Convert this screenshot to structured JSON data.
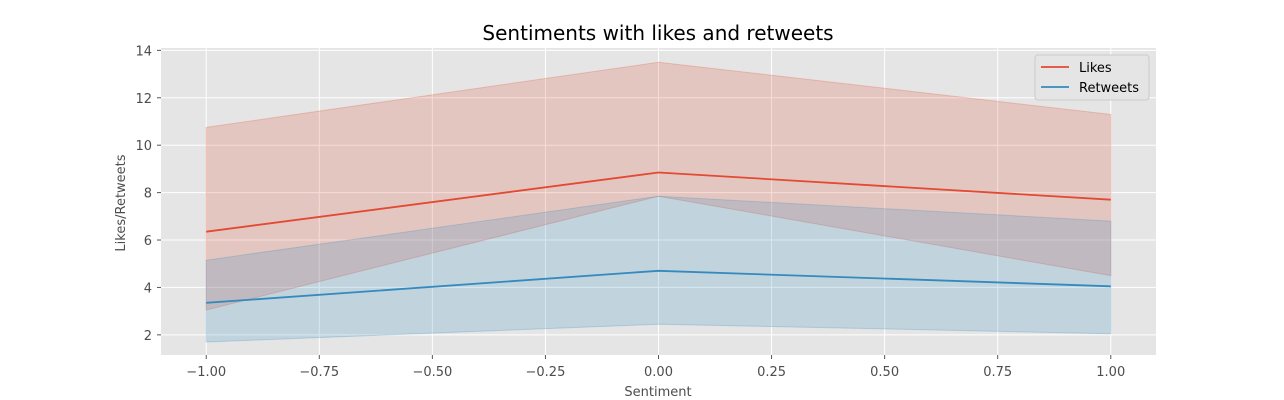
{
  "chart_data": {
    "type": "line",
    "title": "Sentiments with likes and retweets",
    "xlabel": "Sentiment",
    "ylabel": "Likes/Retweets",
    "xlim": [
      -1.1,
      1.1
    ],
    "ylim": [
      1.15,
      14.1
    ],
    "xticks": [
      -1.0,
      -0.75,
      -0.5,
      -0.25,
      0.0,
      0.25,
      0.5,
      0.75,
      1.0
    ],
    "xtick_labels": [
      "−1.00",
      "−0.75",
      "−0.50",
      "−0.25",
      "0.00",
      "0.25",
      "0.50",
      "0.75",
      "1.00"
    ],
    "yticks": [
      2,
      4,
      6,
      8,
      10,
      12,
      14
    ],
    "ytick_labels": [
      "2",
      "4",
      "6",
      "8",
      "10",
      "12",
      "14"
    ],
    "grid": true,
    "legend_position": "top-right",
    "x": [
      -1.0,
      0.0,
      1.0
    ],
    "series": [
      {
        "name": "Likes",
        "color": "#E24A33",
        "values": [
          6.35,
          8.85,
          7.7
        ],
        "ci_lower": [
          3.05,
          7.85,
          4.5
        ],
        "ci_upper": [
          10.75,
          13.5,
          11.3
        ]
      },
      {
        "name": "Retweets",
        "color": "#348ABD",
        "values": [
          3.35,
          4.7,
          4.05
        ],
        "ci_lower": [
          1.7,
          2.45,
          2.05
        ],
        "ci_upper": [
          5.15,
          7.85,
          6.8
        ]
      }
    ]
  }
}
